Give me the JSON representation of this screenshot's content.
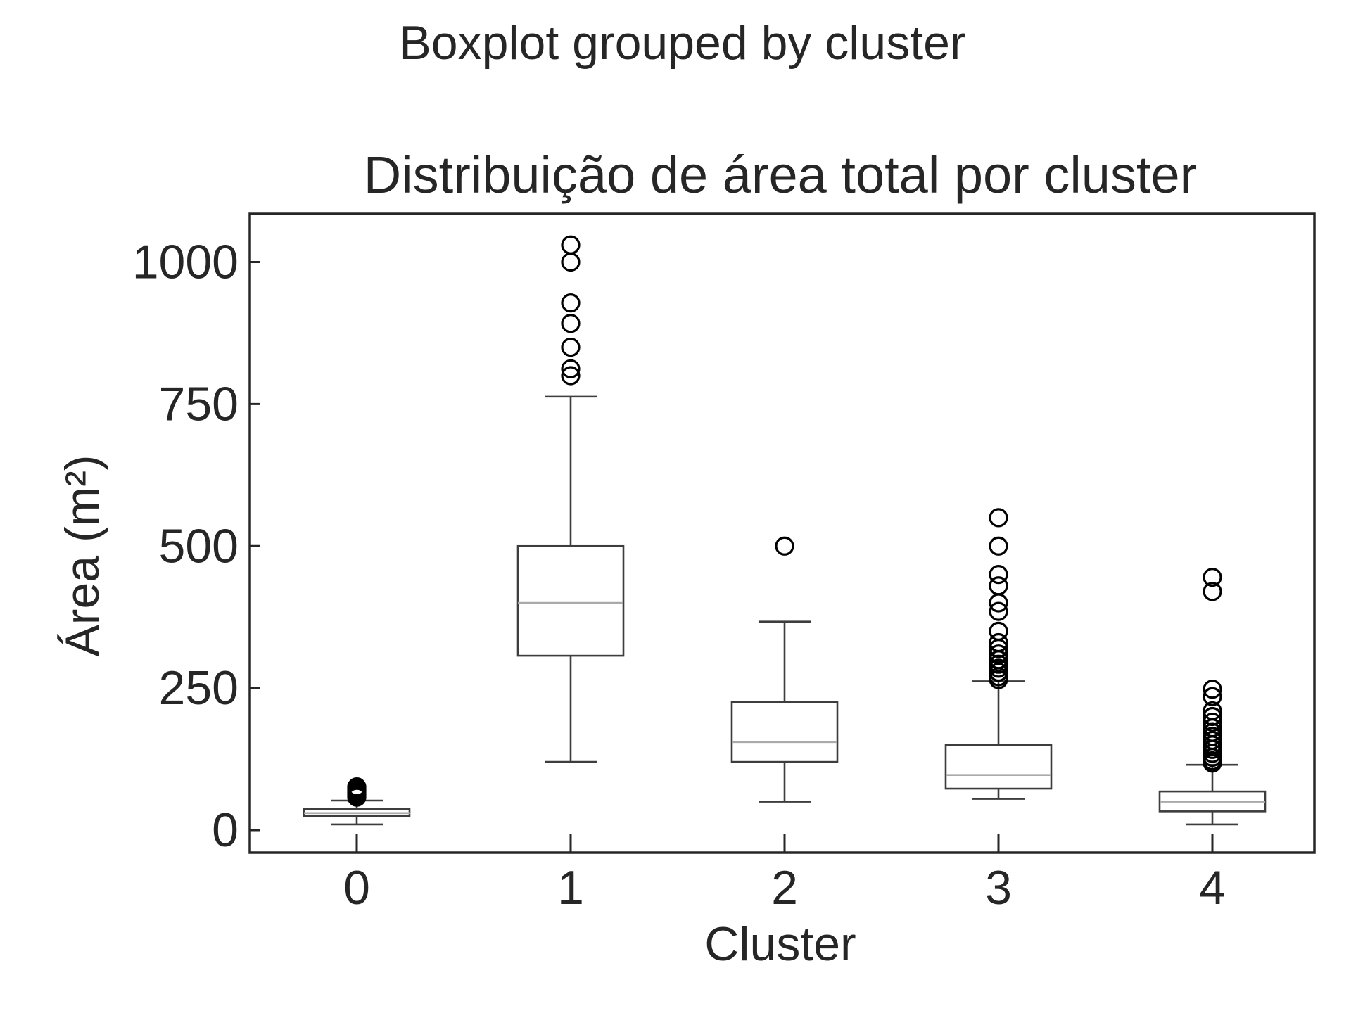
{
  "chart_data": {
    "type": "box",
    "suptitle": "Boxplot grouped by cluster",
    "title": "Distribuição de área total por cluster",
    "xlabel": "Cluster",
    "ylabel": "Área (m²)",
    "categories": [
      "0",
      "1",
      "2",
      "3",
      "4"
    ],
    "yticks": [
      0,
      250,
      500,
      750,
      1000
    ],
    "ylim": [
      -42,
      1085
    ],
    "grid": false,
    "colors": {
      "box": "#3d3d3d",
      "median": "#aaaaaa",
      "axis": "#262626",
      "flier": "#000000"
    },
    "boxes": [
      {
        "name": "0",
        "whislo": 10,
        "q1": 25,
        "med": 30,
        "q3": 37,
        "whishi": 52,
        "fliers": [
          58,
          60,
          62,
          64,
          66,
          68,
          70,
          72,
          74,
          76
        ]
      },
      {
        "name": "1",
        "whislo": 120,
        "q1": 307,
        "med": 400,
        "q3": 500,
        "whishi": 763,
        "fliers": [
          800,
          812,
          850,
          892,
          928,
          1000,
          1030
        ]
      },
      {
        "name": "2",
        "whislo": 50,
        "q1": 120,
        "med": 155,
        "q3": 225,
        "whishi": 367,
        "fliers": [
          500
        ]
      },
      {
        "name": "3",
        "whislo": 55,
        "q1": 73,
        "med": 97,
        "q3": 150,
        "whishi": 262,
        "fliers": [
          265,
          270,
          278,
          285,
          292,
          300,
          310,
          320,
          330,
          350,
          385,
          400,
          430,
          450,
          500,
          550
        ]
      },
      {
        "name": "4",
        "whislo": 10,
        "q1": 33,
        "med": 50,
        "q3": 68,
        "whishi": 115,
        "fliers": [
          118,
          122,
          128,
          135,
          142,
          150,
          158,
          165,
          172,
          180,
          190,
          200,
          210,
          235,
          248,
          420,
          445
        ]
      }
    ]
  }
}
